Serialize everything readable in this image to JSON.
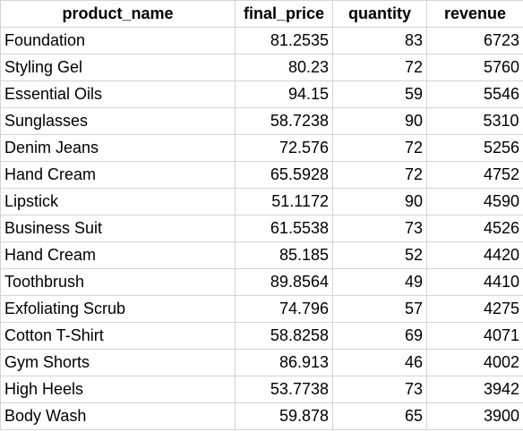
{
  "table": {
    "columns": [
      "product_name",
      "final_price",
      "quantity",
      "revenue"
    ],
    "rows": [
      {
        "product_name": "Foundation",
        "final_price": "81.2535",
        "quantity": "83",
        "revenue": "6723"
      },
      {
        "product_name": "Styling Gel",
        "final_price": "80.23",
        "quantity": "72",
        "revenue": "5760"
      },
      {
        "product_name": "Essential Oils",
        "final_price": "94.15",
        "quantity": "59",
        "revenue": "5546"
      },
      {
        "product_name": "Sunglasses",
        "final_price": "58.7238",
        "quantity": "90",
        "revenue": "5310"
      },
      {
        "product_name": "Denim Jeans",
        "final_price": "72.576",
        "quantity": "72",
        "revenue": "5256"
      },
      {
        "product_name": "Hand Cream",
        "final_price": "65.5928",
        "quantity": "72",
        "revenue": "4752"
      },
      {
        "product_name": "Lipstick",
        "final_price": "51.1172",
        "quantity": "90",
        "revenue": "4590"
      },
      {
        "product_name": "Business Suit",
        "final_price": "61.5538",
        "quantity": "73",
        "revenue": "4526"
      },
      {
        "product_name": "Hand Cream",
        "final_price": "85.185",
        "quantity": "52",
        "revenue": "4420"
      },
      {
        "product_name": "Toothbrush",
        "final_price": "89.8564",
        "quantity": "49",
        "revenue": "4410"
      },
      {
        "product_name": "Exfoliating Scrub",
        "final_price": "74.796",
        "quantity": "57",
        "revenue": "4275"
      },
      {
        "product_name": "Cotton T-Shirt",
        "final_price": "58.8258",
        "quantity": "69",
        "revenue": "4071"
      },
      {
        "product_name": "Gym Shorts",
        "final_price": "86.913",
        "quantity": "46",
        "revenue": "4002"
      },
      {
        "product_name": "High Heels",
        "final_price": "53.7738",
        "quantity": "73",
        "revenue": "3942"
      },
      {
        "product_name": "Body Wash",
        "final_price": "59.878",
        "quantity": "65",
        "revenue": "3900"
      }
    ]
  }
}
